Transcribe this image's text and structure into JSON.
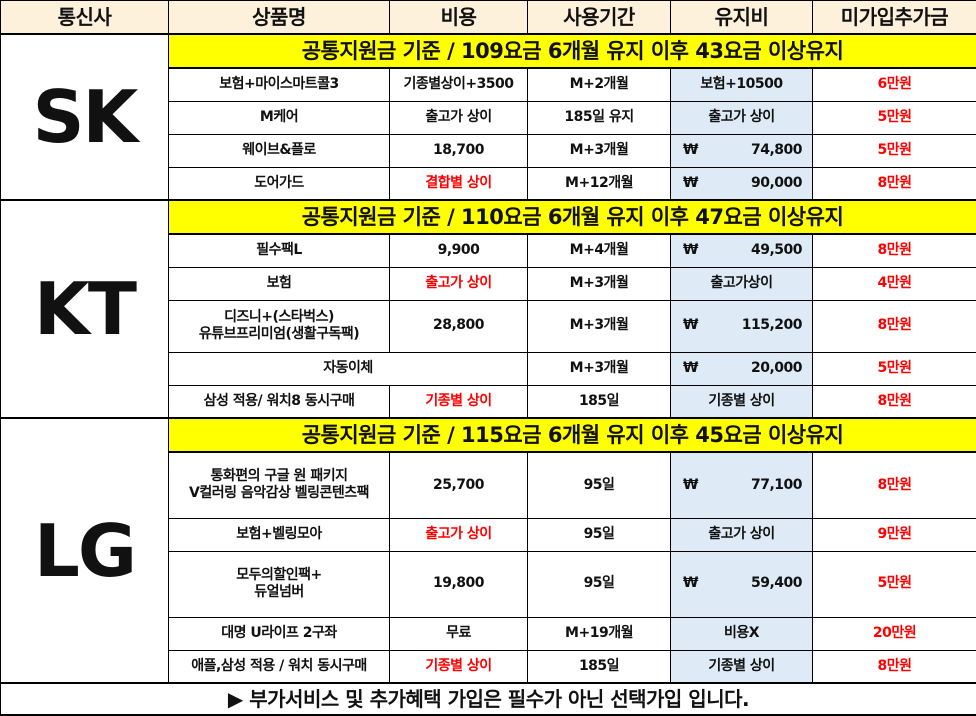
{
  "header": {
    "columns": [
      "통신사",
      "상품명",
      "비용",
      "사용기간",
      "유지비",
      "미가입추가금"
    ]
  },
  "colors": {
    "banner": "#ffff00",
    "header_bg": "#fdf1dc",
    "fee_bg": "#deebf7",
    "accent_red": "#ff0000"
  },
  "carriers": [
    {
      "name": "SK",
      "banner": "공통지원금 기준 / 109요금 6개월 유지 이후 43요금 이상유지",
      "rows": [
        {
          "product": "보험+마이스마트콜3",
          "cost": "기종별상이+3500",
          "cost_red": false,
          "period": "M+2개월",
          "fee_symbol": "",
          "fee": "보험+10500",
          "extra": "6만원"
        },
        {
          "product": "M케어",
          "cost": "출고가 상이",
          "cost_red": false,
          "period": "185일 유지",
          "fee_symbol": "",
          "fee": "출고가 상이",
          "extra": "5만원"
        },
        {
          "product": "웨이브&플로",
          "cost": "18,700",
          "cost_red": false,
          "period": "M+3개월",
          "fee_symbol": "₩",
          "fee": "74,800",
          "extra": "5만원"
        },
        {
          "product": "도어가드",
          "cost": "결합별 상이",
          "cost_red": true,
          "period": "M+12개월",
          "fee_symbol": "₩",
          "fee": "90,000",
          "extra": "8만원"
        }
      ]
    },
    {
      "name": "KT",
      "banner": "공통지원금 기준 / 110요금 6개월 유지 이후 47요금 이상유지",
      "rows": [
        {
          "product": "필수팩L",
          "cost": "9,900",
          "cost_red": false,
          "period": "M+4개월",
          "fee_symbol": "₩",
          "fee": "49,500",
          "extra": "8만원"
        },
        {
          "product": "보험",
          "cost": "출고가 상이",
          "cost_red": true,
          "period": "M+3개월",
          "fee_symbol": "",
          "fee": "출고가상이",
          "extra": "4만원"
        },
        {
          "product": "디즈니+(스타벅스)\n유튜브프리미엄(생활구독팩)",
          "cost": "28,800",
          "cost_red": false,
          "period": "M+3개월",
          "fee_symbol": "₩",
          "fee": "115,200",
          "extra": "8만원",
          "tall": true
        },
        {
          "product": "자동이체",
          "merged": true,
          "period": "M+3개월",
          "fee_symbol": "₩",
          "fee": "20,000",
          "extra": "5만원"
        },
        {
          "product": "삼성 적용/ 워치8 동시구매",
          "cost": "기종별 상이",
          "cost_red": true,
          "period": "185일",
          "fee_symbol": "",
          "fee": "기종별 상이",
          "extra": "8만원"
        }
      ]
    },
    {
      "name": "LG",
      "banner": "공통지원금 기준 / 115요금 6개월 유지 이후 45요금 이상유지",
      "rows": [
        {
          "product": "통화편의 구글 원 패키지\nV컬러링 음악감상 벨링콘텐츠팩",
          "cost": "25,700",
          "cost_red": false,
          "period": "95일",
          "fee_symbol": "₩",
          "fee": "77,100",
          "extra": "8만원",
          "tall": true
        },
        {
          "product": "보험+벨링모아",
          "cost": "출고가 상이",
          "cost_red": true,
          "period": "95일",
          "fee_symbol": "",
          "fee": "출고가 상이",
          "extra": "9만원"
        },
        {
          "product": "모두의할인팩+\n듀얼넘버",
          "cost": "19,800",
          "cost_red": false,
          "period": "95일",
          "fee_symbol": "₩",
          "fee": "59,400",
          "extra": "5만원",
          "tall": true
        },
        {
          "product": "대명 U라이프 2구좌",
          "cost": "무료",
          "cost_red": false,
          "period": "M+19개월",
          "fee_symbol": "",
          "fee": "비용X",
          "extra": "20만원"
        },
        {
          "product": "애플,삼성 적용 / 워치 동시구매",
          "cost": "기종별 상이",
          "cost_red": true,
          "period": "185일",
          "fee_symbol": "",
          "fee": "기종별 상이",
          "extra": "8만원"
        }
      ]
    }
  ],
  "footer": {
    "text": "▶ 부가서비스 및 추가혜택 가입은 필수가 아닌 선택가입 입니다."
  }
}
